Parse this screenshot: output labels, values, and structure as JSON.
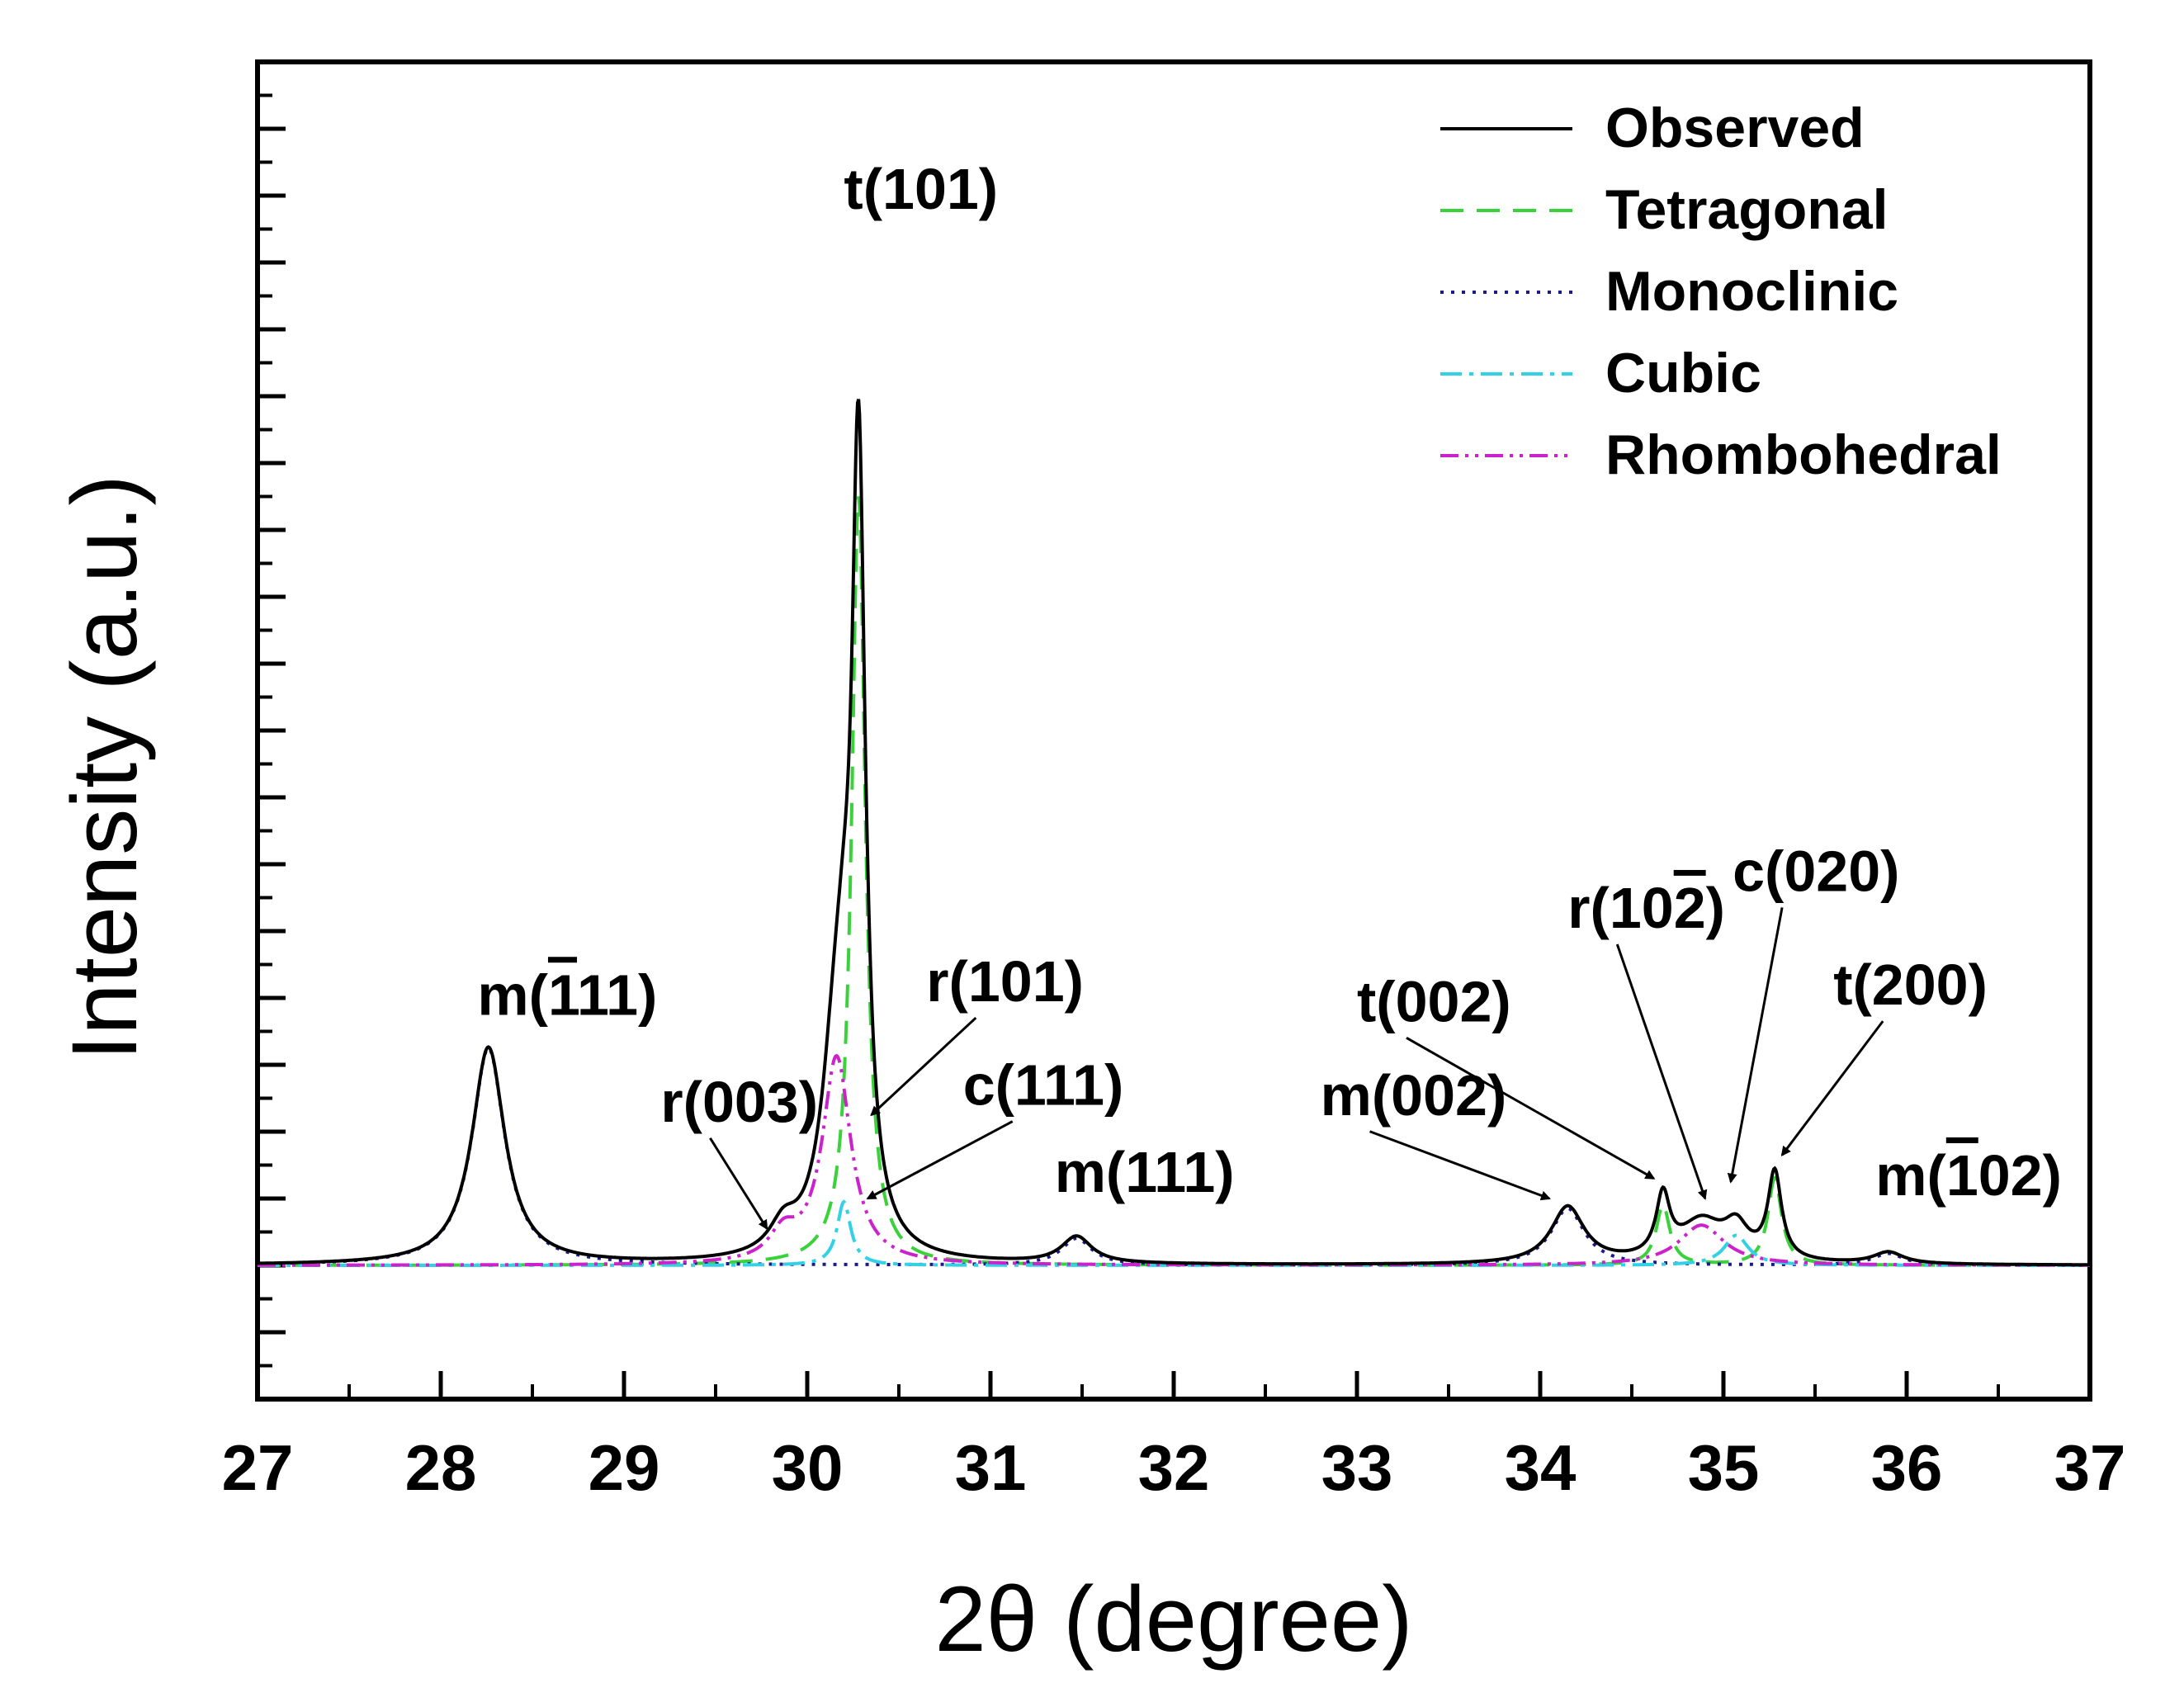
{
  "chart_data": {
    "type": "line",
    "xlabel": "2θ (degree)",
    "ylabel": "Intensity (a.u.)",
    "xlim": [
      27,
      37
    ],
    "ylim": [
      -0.4,
      3.6
    ],
    "x_ticks": [
      "27",
      "28",
      "29",
      "30",
      "31",
      "32",
      "33",
      "34",
      "35",
      "36",
      "37"
    ],
    "y_ticks_shown": false,
    "baseline": 0,
    "legend": {
      "position": "top-right",
      "entries": [
        {
          "name": "Observed",
          "color": "#000000",
          "dash": "solid"
        },
        {
          "name": "Tetragonal",
          "color": "#39d23a",
          "dash": "dashed"
        },
        {
          "name": "Monoclinic",
          "color": "#1a1a8c",
          "dash": "dotted"
        },
        {
          "name": "Cubic",
          "color": "#33d1e6",
          "dash": "dash-dot"
        },
        {
          "name": "Rhombohedral",
          "color": "#cc22cc",
          "dash": "dash-dot-dot"
        }
      ]
    },
    "series": [
      {
        "name": "Tetragonal",
        "peaks": [
          {
            "x": 30.28,
            "height": 2.3,
            "fwhm": 0.09
          },
          {
            "x": 34.67,
            "height": 0.18,
            "fwhm": 0.09
          },
          {
            "x": 35.28,
            "height": 0.26,
            "fwhm": 0.09
          }
        ]
      },
      {
        "name": "Monoclinic",
        "peaks": [
          {
            "x": 28.26,
            "height": 0.65,
            "fwhm": 0.22
          },
          {
            "x": 31.47,
            "height": 0.08,
            "fwhm": 0.2
          },
          {
            "x": 34.15,
            "height": 0.17,
            "fwhm": 0.22
          },
          {
            "x": 35.9,
            "height": 0.035,
            "fwhm": 0.2
          }
        ]
      },
      {
        "name": "Cubic",
        "peaks": [
          {
            "x": 30.2,
            "height": 0.19,
            "fwhm": 0.09
          },
          {
            "x": 35.07,
            "height": 0.09,
            "fwhm": 0.16
          }
        ]
      },
      {
        "name": "Rhombohedral",
        "peaks": [
          {
            "x": 29.87,
            "height": 0.08,
            "fwhm": 0.18
          },
          {
            "x": 30.16,
            "height": 0.62,
            "fwhm": 0.19
          },
          {
            "x": 34.88,
            "height": 0.12,
            "fwhm": 0.3
          }
        ]
      }
    ],
    "annotations": [
      {
        "label": "t(101)",
        "text_x": 30.2,
        "text_y": 3.16,
        "arrow": false
      },
      {
        "label": "m(111)",
        "overbar": "1",
        "text_x": 28.2,
        "text_y": 0.75,
        "arrow": false
      },
      {
        "label": "r(003)",
        "text_x": 29.2,
        "text_y": 0.43,
        "arrow_to": [
          29.78,
          0.11
        ]
      },
      {
        "label": "r(101)",
        "text_x": 30.65,
        "text_y": 0.79,
        "arrow_to": [
          30.35,
          0.45
        ]
      },
      {
        "label": "c(111)",
        "text_x": 30.85,
        "text_y": 0.48,
        "arrow_to": [
          30.33,
          0.2
        ]
      },
      {
        "label": "m(111)",
        "text_x": 31.35,
        "text_y": 0.22,
        "arrow": false
      },
      {
        "label": "m(002)",
        "text_x": 32.8,
        "text_y": 0.45,
        "arrow_to": [
          34.05,
          0.2
        ]
      },
      {
        "label": "t(002)",
        "text_x": 33.0,
        "text_y": 0.73,
        "arrow_to": [
          34.62,
          0.26
        ]
      },
      {
        "label": "r(102)",
        "overbar": "2",
        "text_x": 34.15,
        "text_y": 1.01,
        "arrow_to": [
          34.9,
          0.2
        ]
      },
      {
        "label": "c(020)",
        "text_x": 35.05,
        "text_y": 1.12,
        "arrow_to": [
          35.04,
          0.25
        ]
      },
      {
        "label": "t(200)",
        "text_x": 35.6,
        "text_y": 0.78,
        "arrow_to": [
          35.32,
          0.33
        ]
      },
      {
        "label": "m(102)",
        "overbar": "1",
        "text_x": 35.83,
        "text_y": 0.21,
        "arrow": false
      }
    ]
  }
}
